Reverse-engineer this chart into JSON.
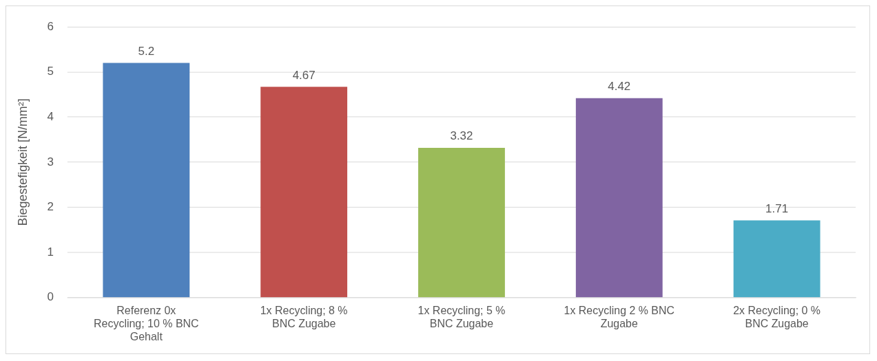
{
  "chart_data": {
    "type": "bar",
    "ylabel": "Biegestefigkeit [N/mm²]",
    "categories": [
      "Referenz 0x Recycling; 10 % BNC Gehalt",
      "1x Recycling; 8 % BNC Zugabe",
      "1x Recycling; 5 % BNC Zugabe",
      "1x Recycling 2 % BNC Zugabe",
      "2x Recycling; 0 % BNC Zugabe"
    ],
    "values": [
      5.2,
      4.67,
      3.32,
      4.42,
      1.71
    ],
    "colors": [
      "#4f81bd",
      "#c0504d",
      "#9bbb59",
      "#8064a2",
      "#4bacc6"
    ],
    "ylim": [
      0,
      6
    ],
    "yticks": [
      0,
      1,
      2,
      3,
      4,
      5,
      6
    ],
    "grid": "y",
    "data_labels": true,
    "legend": false
  }
}
